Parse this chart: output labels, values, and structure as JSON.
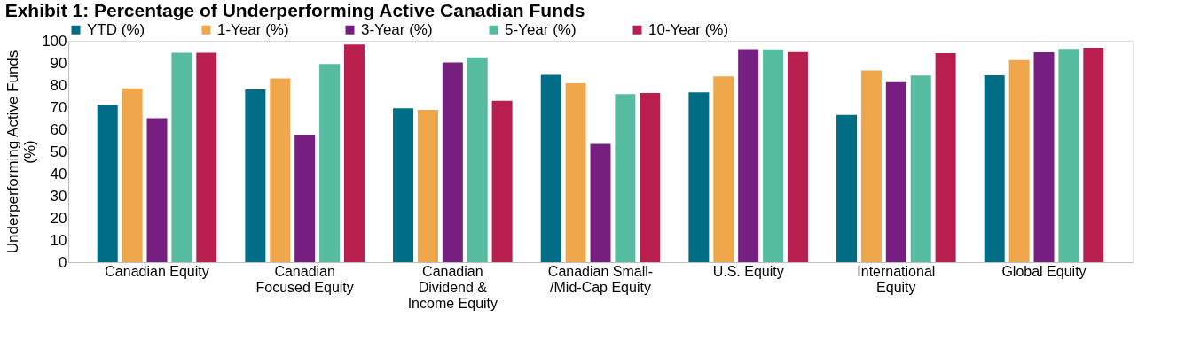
{
  "chart_data": {
    "type": "bar",
    "title": "Exhibit 1: Percentage of Underperforming Active Canadian Funds",
    "ylabel": "Underperforming Active Funds\n(%)",
    "categories": [
      "Canadian Equity",
      "Canadian\nFocused Equity",
      "Canadian\nDividend &\nIncome Equity",
      "Canadian Small-\n/Mid-Cap Equity",
      "U.S. Equity",
      "International\nEquity",
      "Global Equity"
    ],
    "series": [
      {
        "name": "YTD (%)",
        "color": "#006d87",
        "values": [
          71.0,
          78.0,
          69.5,
          84.6,
          76.7,
          66.5,
          84.4
        ]
      },
      {
        "name": "1-Year (%)",
        "color": "#f0a64a",
        "values": [
          78.5,
          83.0,
          68.8,
          80.8,
          83.9,
          86.6,
          91.3
        ]
      },
      {
        "name": "3-Year (%)",
        "color": "#771f80",
        "values": [
          65.0,
          57.6,
          90.2,
          53.4,
          96.2,
          81.3,
          94.8
        ]
      },
      {
        "name": "5-Year (%)",
        "color": "#55bca0",
        "values": [
          94.6,
          89.5,
          92.5,
          75.9,
          96.1,
          84.3,
          96.3
        ]
      },
      {
        "name": "10-Year (%)",
        "color": "#b91f4e",
        "values": [
          94.6,
          98.3,
          72.9,
          76.4,
          94.9,
          94.4,
          96.8
        ]
      }
    ],
    "ylim": [
      0,
      100
    ],
    "yticks": [
      0,
      10,
      20,
      30,
      40,
      50,
      60,
      70,
      80,
      90,
      100
    ],
    "grid": false,
    "legend": "top"
  }
}
